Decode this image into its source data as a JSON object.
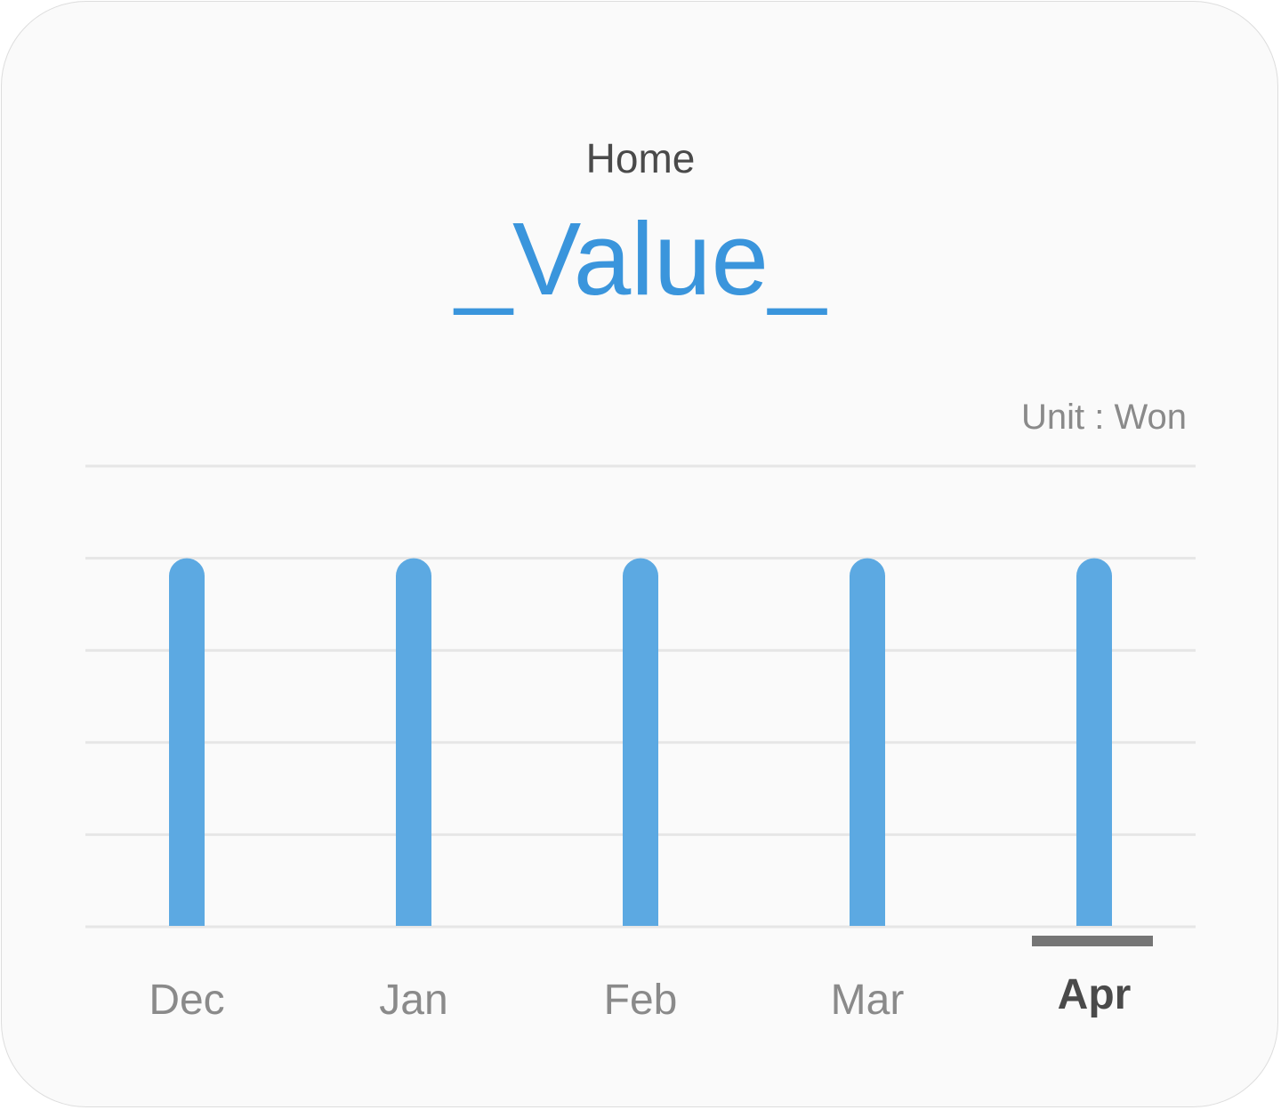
{
  "card": {
    "title": "Home",
    "value": "_Value_",
    "unit_label": "Unit : Won"
  },
  "colors": {
    "bar": "#5ca9e2",
    "value_text": "#3a95dc",
    "gridline": "#e6e6e6",
    "selected_indicator": "#757575",
    "label": "#8a8a8a",
    "selected_label": "#4a4a4a"
  },
  "chart_data": {
    "type": "bar",
    "categories": [
      "Dec",
      "Jan",
      "Feb",
      "Mar",
      "Apr"
    ],
    "values": [
      4,
      4,
      4,
      4,
      4
    ],
    "ylim": [
      0,
      5
    ],
    "grid": true,
    "selected_category": "Apr"
  }
}
